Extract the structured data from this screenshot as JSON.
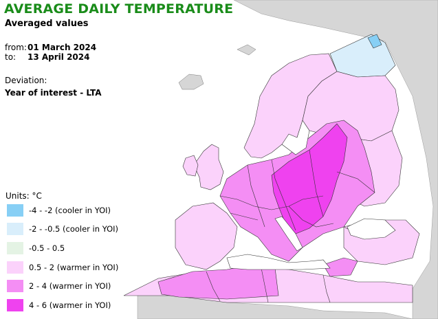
{
  "header": {
    "title": "AVERAGE DAILY TEMPERATURE",
    "title_color": "#1a8c1a",
    "subtitle": "Averaged values"
  },
  "period": {
    "from_label": "from:",
    "from_value": "01 March 2024",
    "to_label": "to:",
    "to_value": "13 April 2024"
  },
  "deviation": {
    "label": "Deviation:",
    "value": "Year of interest - LTA"
  },
  "legend": {
    "title": "Units: °C",
    "items": [
      {
        "label": "-4 - -2 (cooler in YOI)",
        "color": "#87cff5"
      },
      {
        "label": "-2 - -0.5 (cooler in YOI)",
        "color": "#d9eefb"
      },
      {
        "label": "-0.5 - 0.5",
        "color": "#e4f3e4"
      },
      {
        "label": "0.5 - 2 (warmer in YOI)",
        "color": "#fbd2fb"
      },
      {
        "label": "2 - 4 (warmer in YOI)",
        "color": "#f48ef4"
      },
      {
        "label": "4 - 6 (warmer in YOI)",
        "color": "#ef42ef"
      }
    ]
  },
  "map_colors": {
    "sea": "#ffffff",
    "outside_area": "#d6d6d6",
    "border": "#333333"
  }
}
